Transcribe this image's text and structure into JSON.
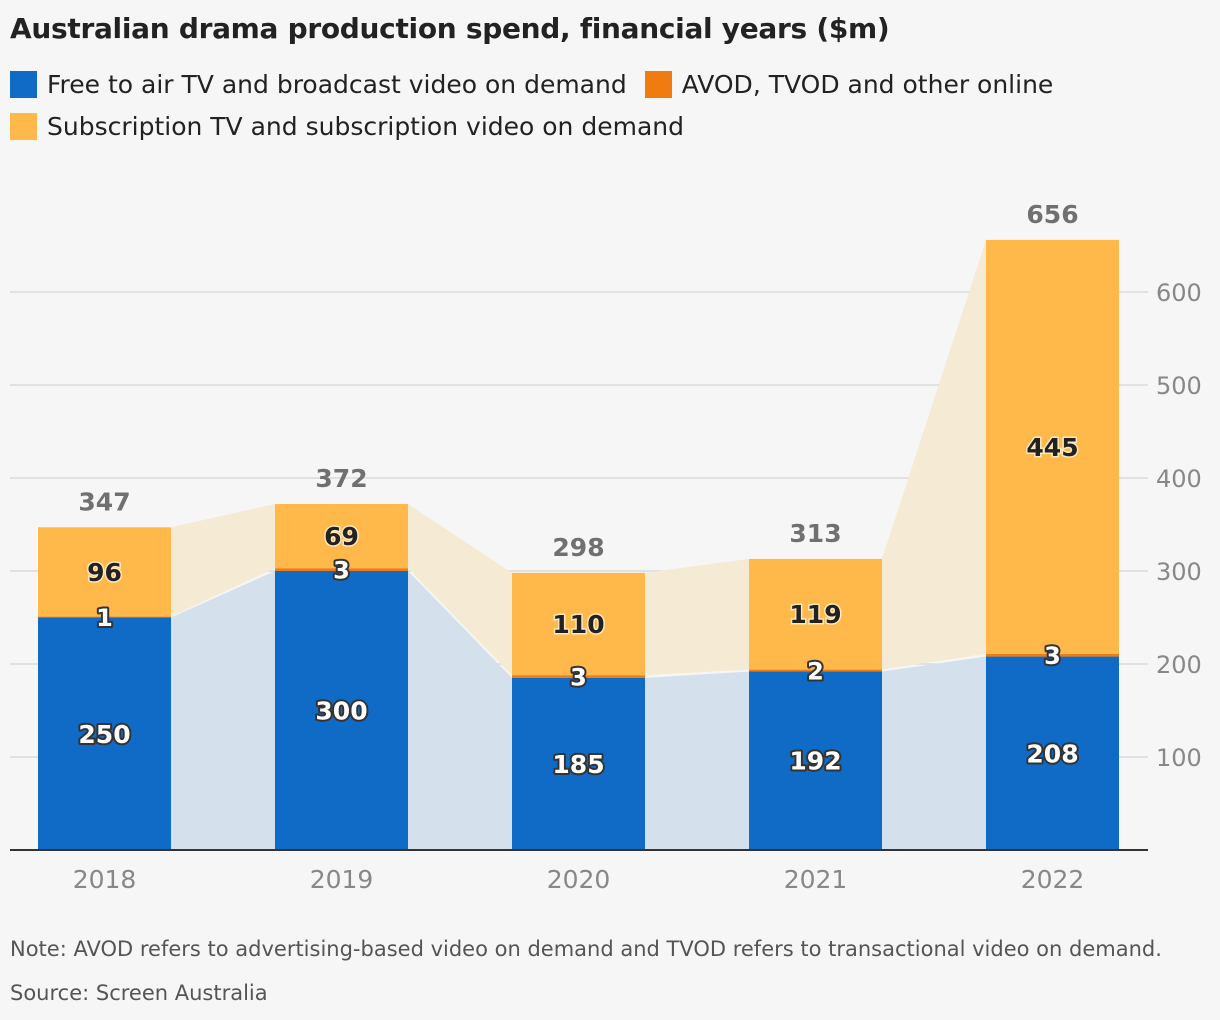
{
  "title": "Australian drama production spend, financial years ($m)",
  "note": "Note: AVOD refers to advertising-based video on demand and TVOD refers to transactional video on demand.",
  "source": "Source: Screen Australia",
  "colors": {
    "fta": "#106bc7",
    "avod": "#f07b10",
    "svod": "#ffb84a",
    "fta_band": "#d4e0ec",
    "svod_band": "#f5ead4",
    "grid": "#dadada",
    "axis": "#333333",
    "tick_text": "#888888",
    "total_text": "#707070"
  },
  "legend": [
    {
      "label": "Free to air TV and broadcast video on demand",
      "color": "#106bc7"
    },
    {
      "label": "AVOD, TVOD and other online",
      "color": "#f07b10"
    },
    {
      "label": "Subscription TV and subscription video on demand",
      "color": "#ffb84a"
    }
  ],
  "chart_data": {
    "type": "bar",
    "stacked": true,
    "categories": [
      "2018",
      "2019",
      "2020",
      "2021",
      "2022"
    ],
    "series": [
      {
        "name": "Free to air TV and broadcast video on demand",
        "values": [
          250,
          300,
          185,
          192,
          208
        ]
      },
      {
        "name": "AVOD, TVOD and other online",
        "values": [
          1,
          3,
          3,
          2,
          3
        ]
      },
      {
        "name": "Subscription TV and subscription video on demand",
        "values": [
          96,
          69,
          110,
          119,
          445
        ]
      }
    ],
    "totals": [
      347,
      372,
      298,
      313,
      656
    ],
    "yticks": [
      100,
      200,
      300,
      400,
      500,
      600
    ],
    "ylim": [
      0,
      656
    ],
    "y_axis_side": "right",
    "grid": true,
    "legend_position": "top"
  }
}
